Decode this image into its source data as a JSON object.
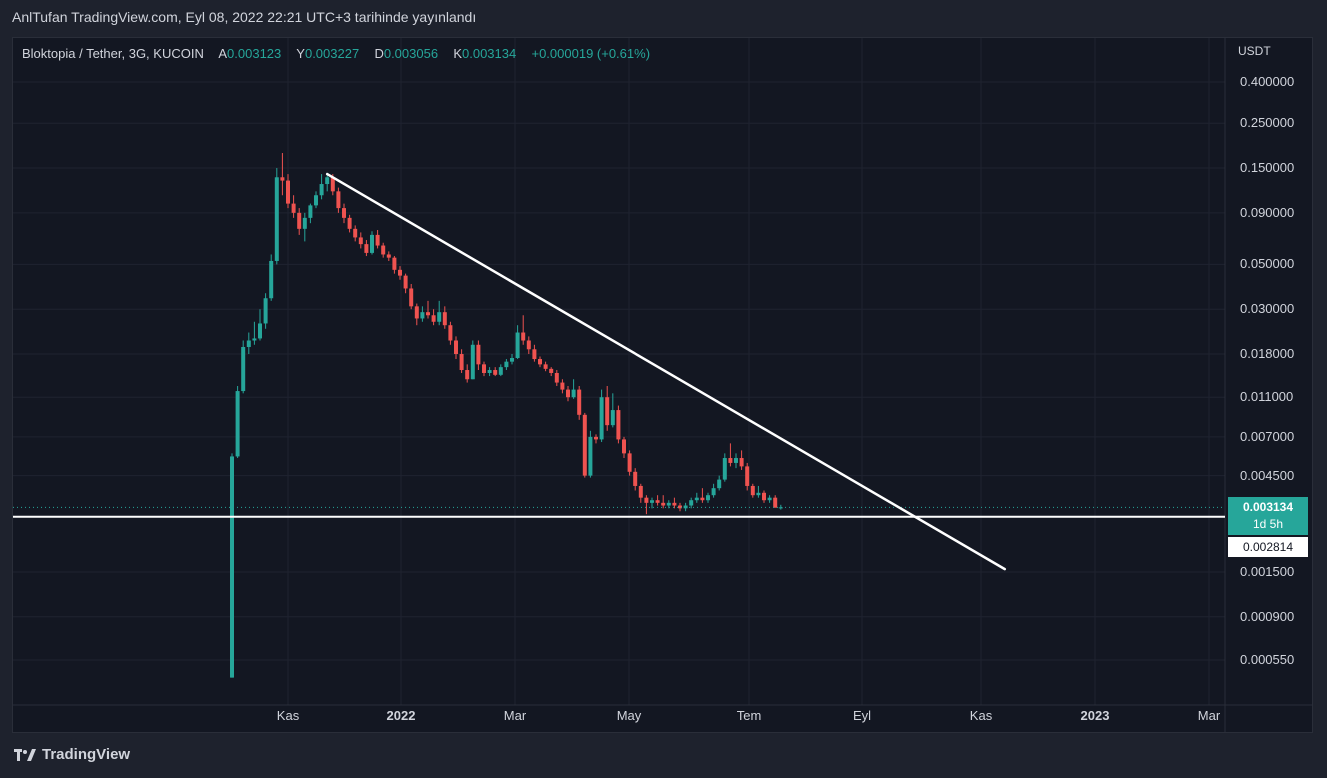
{
  "header": {
    "published_text": "AnlTufan TradingView.com, Eyl 08, 2022 22:21 UTC+3 tarihinde yayınlandı"
  },
  "legend": {
    "symbol": "Bloktopia / Tether, 3G, KUCOIN",
    "open_label": "A",
    "open_value": "0.003123",
    "high_label": "Y",
    "high_value": "0.003227",
    "low_label": "D",
    "low_value": "0.003056",
    "close_label": "K",
    "close_value": "0.003134",
    "change": "+0.000019 (+0.61%)"
  },
  "price_axis": {
    "currency": "USDT",
    "ticks": [
      "0.400000",
      "0.250000",
      "0.150000",
      "0.090000",
      "0.050000",
      "0.030000",
      "0.018000",
      "0.011000",
      "0.007000",
      "0.004500",
      "0.001500",
      "0.000900",
      "0.000550"
    ]
  },
  "time_axis": {
    "ticks": [
      {
        "label": "Kas",
        "bold": false
      },
      {
        "label": "2022",
        "bold": true
      },
      {
        "label": "Mar",
        "bold": false
      },
      {
        "label": "May",
        "bold": false
      },
      {
        "label": "Tem",
        "bold": false
      },
      {
        "label": "Eyl",
        "bold": false
      },
      {
        "label": "Kas",
        "bold": false
      },
      {
        "label": "2023",
        "bold": true
      },
      {
        "label": "Mar",
        "bold": false
      }
    ]
  },
  "tags": {
    "last_price": "0.003134",
    "countdown": "1d 5h",
    "horizontal_line_price": "0.002814"
  },
  "branding": {
    "logo_text": "TradingView"
  },
  "colors": {
    "background": "#131722",
    "up": "#26a69a",
    "down": "#ef5350",
    "grid": "#1f2330",
    "drawing": "#ffffff"
  },
  "chart_data": {
    "type": "candlestick",
    "title": "Bloktopia / Tether, 3G, KUCOIN",
    "y_scale": "log",
    "y_unit": "USDT",
    "ylim": [
      0.0004,
      0.55
    ],
    "candles": [
      {
        "o": 0.00045,
        "h": 0.0058,
        "l": 0.00045,
        "c": 0.0056
      },
      {
        "o": 0.0056,
        "h": 0.0125,
        "l": 0.0055,
        "c": 0.0118
      },
      {
        "o": 0.0118,
        "h": 0.021,
        "l": 0.0115,
        "c": 0.0195
      },
      {
        "o": 0.0195,
        "h": 0.023,
        "l": 0.018,
        "c": 0.021
      },
      {
        "o": 0.021,
        "h": 0.026,
        "l": 0.02,
        "c": 0.0215
      },
      {
        "o": 0.0215,
        "h": 0.03,
        "l": 0.021,
        "c": 0.0255
      },
      {
        "o": 0.0255,
        "h": 0.036,
        "l": 0.024,
        "c": 0.034
      },
      {
        "o": 0.034,
        "h": 0.056,
        "l": 0.033,
        "c": 0.052
      },
      {
        "o": 0.052,
        "h": 0.15,
        "l": 0.05,
        "c": 0.135
      },
      {
        "o": 0.135,
        "h": 0.178,
        "l": 0.11,
        "c": 0.13
      },
      {
        "o": 0.13,
        "h": 0.14,
        "l": 0.095,
        "c": 0.1
      },
      {
        "o": 0.1,
        "h": 0.11,
        "l": 0.085,
        "c": 0.09
      },
      {
        "o": 0.09,
        "h": 0.095,
        "l": 0.07,
        "c": 0.075
      },
      {
        "o": 0.075,
        "h": 0.09,
        "l": 0.065,
        "c": 0.085
      },
      {
        "o": 0.085,
        "h": 0.1,
        "l": 0.08,
        "c": 0.098
      },
      {
        "o": 0.098,
        "h": 0.115,
        "l": 0.095,
        "c": 0.11
      },
      {
        "o": 0.11,
        "h": 0.14,
        "l": 0.105,
        "c": 0.125
      },
      {
        "o": 0.125,
        "h": 0.142,
        "l": 0.115,
        "c": 0.135
      },
      {
        "o": 0.135,
        "h": 0.14,
        "l": 0.11,
        "c": 0.115
      },
      {
        "o": 0.115,
        "h": 0.12,
        "l": 0.09,
        "c": 0.095
      },
      {
        "o": 0.095,
        "h": 0.1,
        "l": 0.08,
        "c": 0.085
      },
      {
        "o": 0.085,
        "h": 0.088,
        "l": 0.072,
        "c": 0.075
      },
      {
        "o": 0.075,
        "h": 0.078,
        "l": 0.065,
        "c": 0.068
      },
      {
        "o": 0.068,
        "h": 0.072,
        "l": 0.06,
        "c": 0.063
      },
      {
        "o": 0.063,
        "h": 0.066,
        "l": 0.055,
        "c": 0.057
      },
      {
        "o": 0.057,
        "h": 0.073,
        "l": 0.056,
        "c": 0.07
      },
      {
        "o": 0.07,
        "h": 0.074,
        "l": 0.06,
        "c": 0.062
      },
      {
        "o": 0.062,
        "h": 0.064,
        "l": 0.054,
        "c": 0.056
      },
      {
        "o": 0.056,
        "h": 0.058,
        "l": 0.052,
        "c": 0.054
      },
      {
        "o": 0.054,
        "h": 0.055,
        "l": 0.045,
        "c": 0.047
      },
      {
        "o": 0.047,
        "h": 0.049,
        "l": 0.042,
        "c": 0.044
      },
      {
        "o": 0.044,
        "h": 0.045,
        "l": 0.036,
        "c": 0.038
      },
      {
        "o": 0.038,
        "h": 0.04,
        "l": 0.03,
        "c": 0.031
      },
      {
        "o": 0.031,
        "h": 0.032,
        "l": 0.025,
        "c": 0.027
      },
      {
        "o": 0.027,
        "h": 0.031,
        "l": 0.026,
        "c": 0.029
      },
      {
        "o": 0.029,
        "h": 0.033,
        "l": 0.027,
        "c": 0.028
      },
      {
        "o": 0.028,
        "h": 0.03,
        "l": 0.025,
        "c": 0.026
      },
      {
        "o": 0.026,
        "h": 0.033,
        "l": 0.025,
        "c": 0.029
      },
      {
        "o": 0.029,
        "h": 0.031,
        "l": 0.024,
        "c": 0.025
      },
      {
        "o": 0.025,
        "h": 0.026,
        "l": 0.02,
        "c": 0.021
      },
      {
        "o": 0.021,
        "h": 0.022,
        "l": 0.017,
        "c": 0.018
      },
      {
        "o": 0.018,
        "h": 0.019,
        "l": 0.0145,
        "c": 0.015
      },
      {
        "o": 0.015,
        "h": 0.016,
        "l": 0.013,
        "c": 0.0135
      },
      {
        "o": 0.0135,
        "h": 0.021,
        "l": 0.0135,
        "c": 0.02
      },
      {
        "o": 0.02,
        "h": 0.021,
        "l": 0.015,
        "c": 0.016
      },
      {
        "o": 0.016,
        "h": 0.0165,
        "l": 0.014,
        "c": 0.0145
      },
      {
        "o": 0.0145,
        "h": 0.0155,
        "l": 0.014,
        "c": 0.015
      },
      {
        "o": 0.015,
        "h": 0.0155,
        "l": 0.014,
        "c": 0.0142
      },
      {
        "o": 0.0142,
        "h": 0.016,
        "l": 0.014,
        "c": 0.0155
      },
      {
        "o": 0.0155,
        "h": 0.017,
        "l": 0.015,
        "c": 0.0165
      },
      {
        "o": 0.0165,
        "h": 0.018,
        "l": 0.016,
        "c": 0.0172
      },
      {
        "o": 0.0172,
        "h": 0.025,
        "l": 0.017,
        "c": 0.023
      },
      {
        "o": 0.023,
        "h": 0.028,
        "l": 0.02,
        "c": 0.021
      },
      {
        "o": 0.021,
        "h": 0.022,
        "l": 0.018,
        "c": 0.019
      },
      {
        "o": 0.019,
        "h": 0.02,
        "l": 0.0165,
        "c": 0.017
      },
      {
        "o": 0.017,
        "h": 0.0175,
        "l": 0.0155,
        "c": 0.016
      },
      {
        "o": 0.016,
        "h": 0.0165,
        "l": 0.0148,
        "c": 0.0152
      },
      {
        "o": 0.0152,
        "h": 0.0155,
        "l": 0.014,
        "c": 0.0145
      },
      {
        "o": 0.0145,
        "h": 0.015,
        "l": 0.0125,
        "c": 0.013
      },
      {
        "o": 0.013,
        "h": 0.0135,
        "l": 0.0115,
        "c": 0.012
      },
      {
        "o": 0.012,
        "h": 0.0125,
        "l": 0.0105,
        "c": 0.011
      },
      {
        "o": 0.011,
        "h": 0.0135,
        "l": 0.0108,
        "c": 0.012
      },
      {
        "o": 0.012,
        "h": 0.0125,
        "l": 0.0085,
        "c": 0.009
      },
      {
        "o": 0.009,
        "h": 0.0092,
        "l": 0.0044,
        "c": 0.0045
      },
      {
        "o": 0.0045,
        "h": 0.0075,
        "l": 0.0044,
        "c": 0.007
      },
      {
        "o": 0.007,
        "h": 0.0072,
        "l": 0.0065,
        "c": 0.0068
      },
      {
        "o": 0.0068,
        "h": 0.012,
        "l": 0.0066,
        "c": 0.011
      },
      {
        "o": 0.011,
        "h": 0.0125,
        "l": 0.0075,
        "c": 0.008
      },
      {
        "o": 0.008,
        "h": 0.0115,
        "l": 0.0078,
        "c": 0.0095
      },
      {
        "o": 0.0095,
        "h": 0.01,
        "l": 0.0065,
        "c": 0.0068
      },
      {
        "o": 0.0068,
        "h": 0.007,
        "l": 0.0055,
        "c": 0.0058
      },
      {
        "o": 0.0058,
        "h": 0.006,
        "l": 0.0045,
        "c": 0.0047
      },
      {
        "o": 0.0047,
        "h": 0.0049,
        "l": 0.0038,
        "c": 0.004
      },
      {
        "o": 0.004,
        "h": 0.0041,
        "l": 0.0033,
        "c": 0.0035
      },
      {
        "o": 0.0035,
        "h": 0.0036,
        "l": 0.0029,
        "c": 0.0033
      },
      {
        "o": 0.0033,
        "h": 0.0035,
        "l": 0.0031,
        "c": 0.0034
      },
      {
        "o": 0.0034,
        "h": 0.0036,
        "l": 0.0032,
        "c": 0.0033
      },
      {
        "o": 0.0033,
        "h": 0.0036,
        "l": 0.0031,
        "c": 0.0032
      },
      {
        "o": 0.0032,
        "h": 0.0034,
        "l": 0.0031,
        "c": 0.0033
      },
      {
        "o": 0.0033,
        "h": 0.0035,
        "l": 0.0031,
        "c": 0.0032
      },
      {
        "o": 0.0032,
        "h": 0.0033,
        "l": 0.003,
        "c": 0.0031
      },
      {
        "o": 0.0031,
        "h": 0.0033,
        "l": 0.003,
        "c": 0.0032
      },
      {
        "o": 0.0032,
        "h": 0.0035,
        "l": 0.0031,
        "c": 0.0034
      },
      {
        "o": 0.0034,
        "h": 0.0037,
        "l": 0.0033,
        "c": 0.0035
      },
      {
        "o": 0.0035,
        "h": 0.0039,
        "l": 0.0033,
        "c": 0.0034
      },
      {
        "o": 0.0034,
        "h": 0.0037,
        "l": 0.0033,
        "c": 0.0036
      },
      {
        "o": 0.0036,
        "h": 0.0041,
        "l": 0.0035,
        "c": 0.0039
      },
      {
        "o": 0.0039,
        "h": 0.0045,
        "l": 0.0038,
        "c": 0.0043
      },
      {
        "o": 0.0043,
        "h": 0.0058,
        "l": 0.0042,
        "c": 0.0055
      },
      {
        "o": 0.0055,
        "h": 0.0065,
        "l": 0.005,
        "c": 0.0052
      },
      {
        "o": 0.0052,
        "h": 0.0058,
        "l": 0.0049,
        "c": 0.0055
      },
      {
        "o": 0.0055,
        "h": 0.006,
        "l": 0.0048,
        "c": 0.005
      },
      {
        "o": 0.005,
        "h": 0.0052,
        "l": 0.0038,
        "c": 0.004
      },
      {
        "o": 0.004,
        "h": 0.0041,
        "l": 0.0035,
        "c": 0.0036
      },
      {
        "o": 0.0036,
        "h": 0.004,
        "l": 0.0035,
        "c": 0.0037
      },
      {
        "o": 0.0037,
        "h": 0.0038,
        "l": 0.0033,
        "c": 0.0034
      },
      {
        "o": 0.0034,
        "h": 0.0036,
        "l": 0.0033,
        "c": 0.0035
      },
      {
        "o": 0.0035,
        "h": 0.0036,
        "l": 0.0032,
        "c": 0.00312
      },
      {
        "o": 0.003123,
        "h": 0.003227,
        "l": 0.003056,
        "c": 0.003134
      }
    ],
    "trendline": {
      "from": {
        "candle_index": 17,
        "price": 0.14
      },
      "to": {
        "date_offset_candles": 40,
        "price": 0.00155
      }
    },
    "horizontal_line": 0.002814,
    "last_price_line": 0.003134
  }
}
